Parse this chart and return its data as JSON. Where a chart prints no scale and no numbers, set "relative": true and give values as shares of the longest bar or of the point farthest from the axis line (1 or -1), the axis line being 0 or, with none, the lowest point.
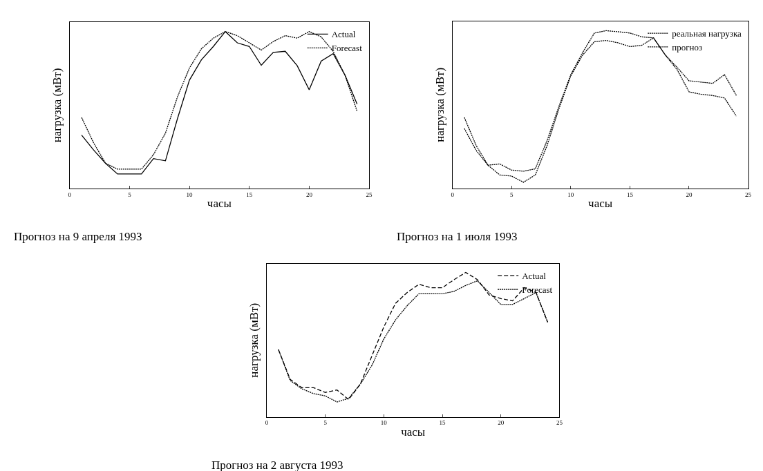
{
  "chart_data": [
    {
      "type": "line",
      "relative": true,
      "xlabel": "часы",
      "ylabel": "нагрузка (мВт)",
      "annotations": [
        "Прогноз на 9 апреля 1993"
      ],
      "x": [
        1,
        2,
        3,
        4,
        5,
        6,
        7,
        8,
        9,
        10,
        11,
        12,
        13,
        14,
        15,
        16,
        17,
        18,
        19,
        20,
        21,
        22,
        23,
        24
      ],
      "xlim": [
        0,
        25
      ],
      "xticks": [
        0,
        5,
        10,
        15,
        20,
        25
      ],
      "legend": "top right",
      "marker": "none",
      "tick_labels": "x",
      "series": [
        {
          "name": "Actual",
          "color": "#000000",
          "line_style": "solid",
          "values": [
            0.34,
            0.245,
            0.16,
            0.092,
            0.092,
            0.092,
            0.19,
            0.176,
            0.444,
            0.69,
            0.82,
            0.905,
            1,
            0.928,
            0.905,
            0.785,
            0.867,
            0.874,
            0.782,
            0.629,
            0.812,
            0.859,
            0.72,
            0.537
          ]
        },
        {
          "name": "Forecast",
          "color": "#000000",
          "line_style": "dotted",
          "values": [
            0.452,
            0.291,
            0.16,
            0.123,
            0.123,
            0.123,
            0.215,
            0.352,
            0.583,
            0.767,
            0.89,
            0.958,
            1,
            0.974,
            0.928,
            0.882,
            0.936,
            0.974,
            0.958,
            1,
            0.966,
            0.874,
            0.72,
            0.491
          ]
        }
      ]
    },
    {
      "type": "line",
      "relative": true,
      "xlabel": "часы",
      "ylabel": "нагрузка (мВт)",
      "annotations": [
        "Прогноз на 1 июля 1993"
      ],
      "x": [
        1,
        2,
        3,
        4,
        5,
        6,
        7,
        8,
        9,
        10,
        11,
        12,
        13,
        14,
        15,
        16,
        17,
        18,
        19,
        20,
        21,
        22,
        23,
        24
      ],
      "xlim": [
        0,
        25
      ],
      "xticks": [
        0,
        5,
        10,
        15,
        20,
        25
      ],
      "legend": "top right",
      "marker": "none",
      "tick_labels": "x",
      "series": [
        {
          "name": "реальная нагрузка",
          "color": "#000000",
          "line_style": "dotted",
          "values": [
            0.38,
            0.241,
            0.147,
            0.155,
            0.116,
            0.109,
            0.124,
            0.303,
            0.52,
            0.721,
            0.861,
            0.985,
            1,
            0.993,
            0.985,
            0.961,
            0.954,
            0.845,
            0.767,
            0.682,
            0.674,
            0.666,
            0.721,
            0.589
          ]
        },
        {
          "name": "прогноз",
          "color": "#000000",
          "line_style": "dotted",
          "values": [
            0.45,
            0.272,
            0.147,
            0.085,
            0.078,
            0.039,
            0.085,
            0.272,
            0.505,
            0.713,
            0.845,
            0.93,
            0.938,
            0.923,
            0.899,
            0.907,
            0.954,
            0.845,
            0.752,
            0.612,
            0.597,
            0.589,
            0.573,
            0.458
          ]
        }
      ]
    },
    {
      "type": "line",
      "relative": true,
      "xlabel": "часы",
      "ylabel": "нагрузка (мВт)",
      "annotations": [
        "Прогноз на 2 августа 1993"
      ],
      "x": [
        1,
        2,
        3,
        4,
        5,
        6,
        7,
        8,
        9,
        10,
        11,
        12,
        13,
        14,
        15,
        16,
        17,
        18,
        19,
        20,
        21,
        22,
        23,
        24
      ],
      "xlim": [
        0,
        25
      ],
      "xticks": [
        0,
        5,
        10,
        15,
        20,
        25
      ],
      "legend": "top right",
      "marker": "none",
      "tick_labels": "x",
      "series": [
        {
          "name": "Actual",
          "color": "#000000",
          "line_style": "dashed",
          "values": [
            0.466,
            0.26,
            0.202,
            0.202,
            0.169,
            0.186,
            0.12,
            0.227,
            0.425,
            0.622,
            0.786,
            0.861,
            0.918,
            0.894,
            0.894,
            0.95,
            1,
            0.95,
            0.844,
            0.819,
            0.803,
            0.894,
            0.861,
            0.655
          ]
        },
        {
          "name": "Forecast",
          "color": "#000000",
          "line_style": "dotted",
          "values": [
            0.466,
            0.252,
            0.194,
            0.161,
            0.145,
            0.103,
            0.128,
            0.227,
            0.358,
            0.539,
            0.671,
            0.77,
            0.852,
            0.852,
            0.852,
            0.869,
            0.91,
            0.942,
            0.861,
            0.778,
            0.778,
            0.819,
            0.861,
            0.655
          ]
        }
      ]
    }
  ]
}
